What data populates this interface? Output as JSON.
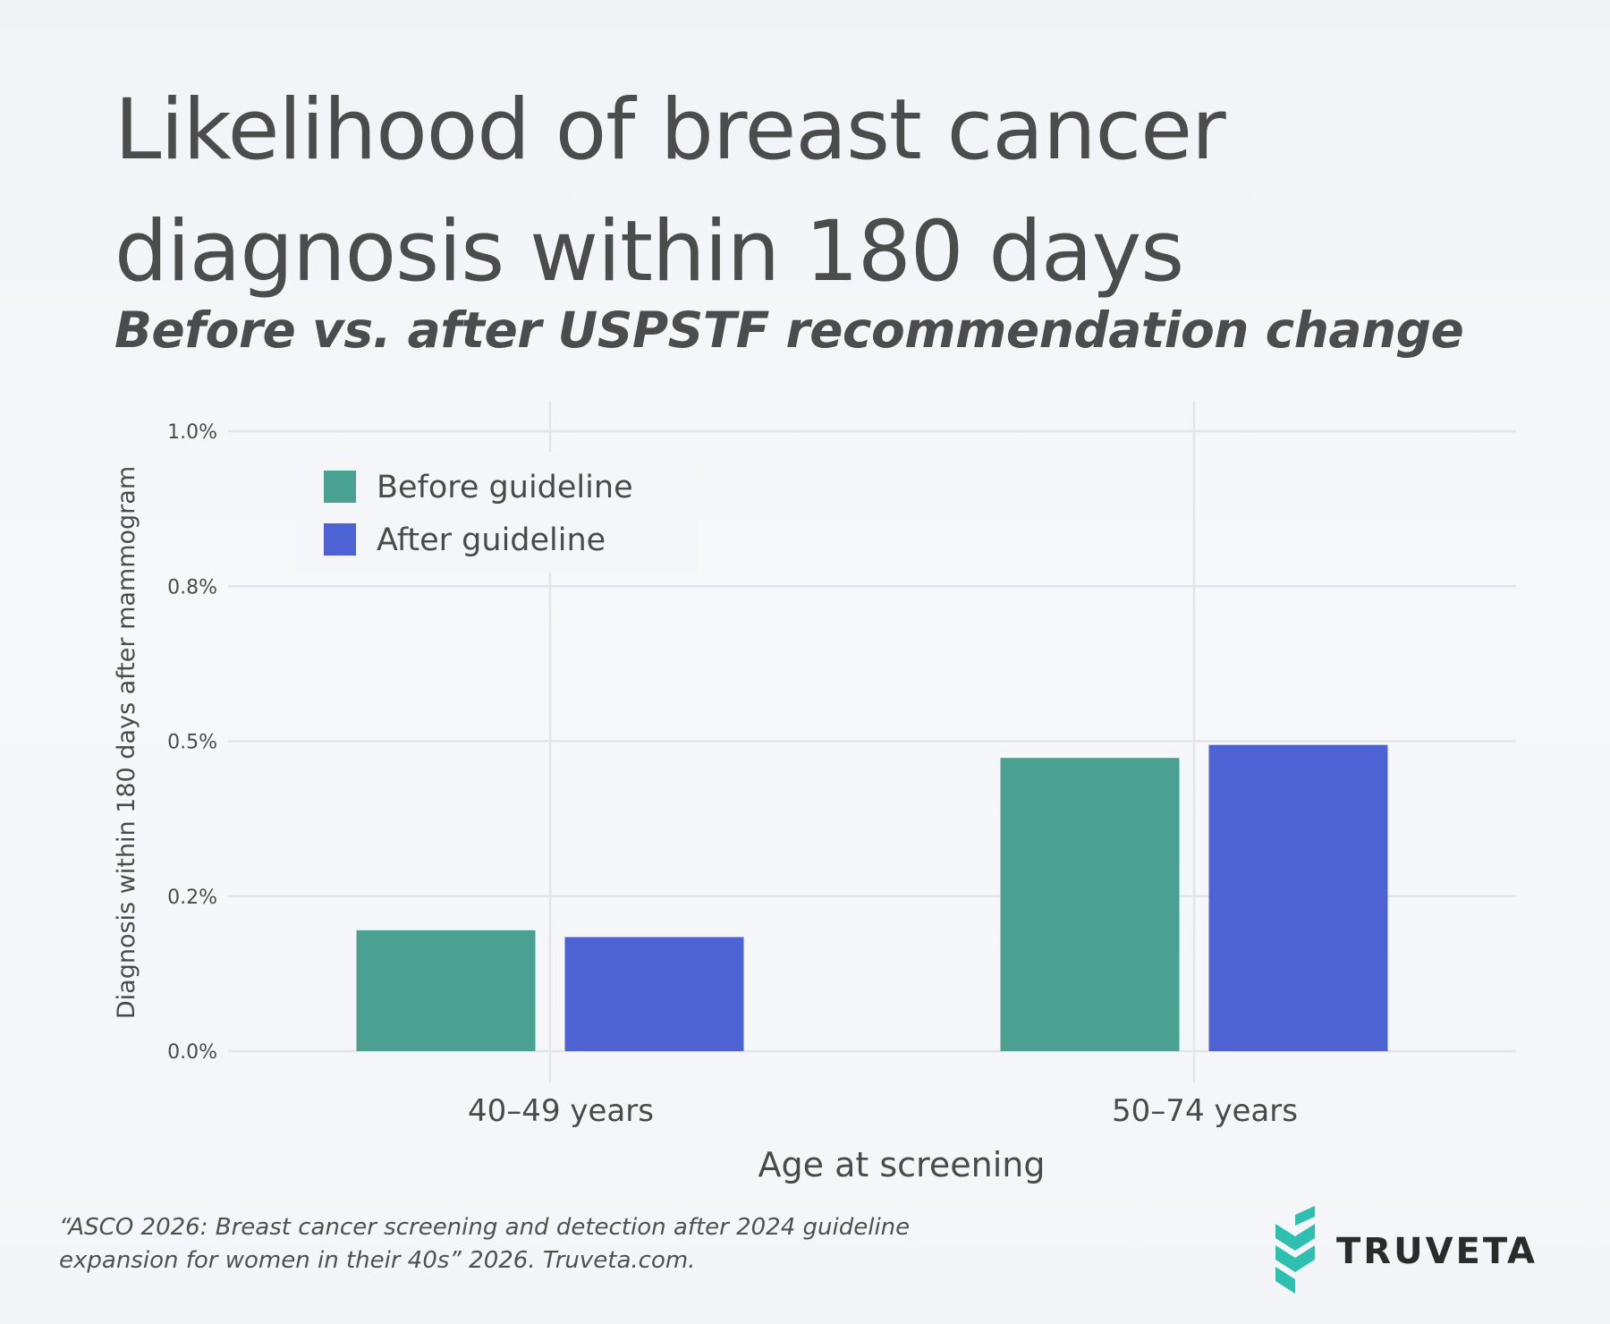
{
  "title": "Likelihood of breast cancer diagnosis within 180 days",
  "subtitle": "Before vs. after USPSTF recommendation change",
  "colors": {
    "before": "#4aa192",
    "after": "#4d63d4",
    "grid": "#e4e5e9",
    "text": "#4a4a4a",
    "logo_teal": "#2fbfb0"
  },
  "chart_data": {
    "type": "bar",
    "title": "Likelihood of breast cancer diagnosis within 180 days",
    "subtitle": "Before vs. after USPSTF recommendation change",
    "categories": [
      "40–49 years",
      "50–74 years"
    ],
    "series": [
      {
        "name": "Before guideline",
        "values": [
          0.195,
          0.473
        ]
      },
      {
        "name": "After guideline",
        "values": [
          0.184,
          0.494
        ]
      }
    ],
    "xlabel": "Age at screening",
    "ylabel": "Diagnosis within 180 days after mammogram",
    "ylim": [
      0,
      1.0
    ],
    "yticks": [
      0,
      0.25,
      0.5,
      0.75,
      1.0
    ],
    "ytick_labels": [
      "0.0%",
      "0.2%",
      "0.5%",
      "0.8%",
      "1.0%"
    ],
    "grid": true,
    "legend_position": "top-left"
  },
  "citation": "“ASCO 2026: Breast cancer screening and detection after 2024 guideline expansion for women in their 40s” 2026. Truveta.com.",
  "logo": {
    "name": "TRUVETA"
  }
}
